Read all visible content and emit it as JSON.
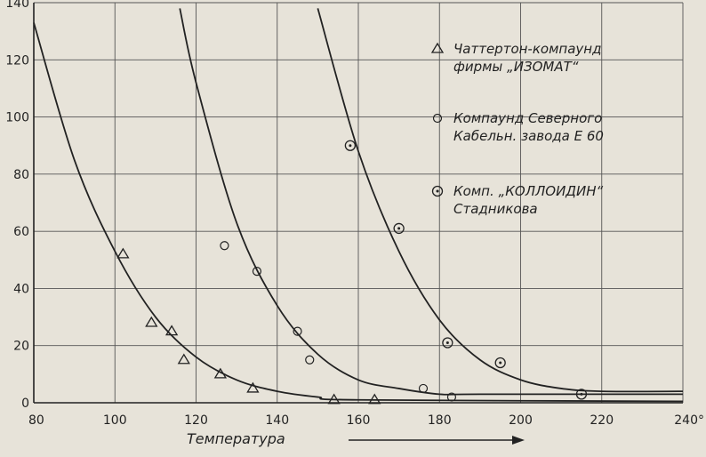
{
  "chart_data": {
    "type": "scatter",
    "title": "",
    "xlabel": "Температура",
    "ylabel": "",
    "xlim": [
      80,
      240
    ],
    "ylim": [
      0,
      140
    ],
    "x_ticks": [
      80,
      100,
      120,
      140,
      160,
      180,
      200,
      220,
      240
    ],
    "x_tick_labels": [
      "80",
      "100",
      "120",
      "140",
      "160",
      "180",
      "200",
      "220",
      "240°"
    ],
    "y_ticks": [
      0,
      20,
      40,
      60,
      80,
      100,
      120,
      140
    ],
    "y_tick_labels": [
      "0",
      "20",
      "40",
      "60",
      "80",
      "100",
      "120",
      "140"
    ],
    "grid": true,
    "legend_position": "top-right",
    "series": [
      {
        "name": "Чаттертон-компаунд фирмы „ИЗОМАТ“",
        "marker": "triangle",
        "points": [
          {
            "x": 102,
            "y": 52
          },
          {
            "x": 109,
            "y": 28
          },
          {
            "x": 114,
            "y": 25
          },
          {
            "x": 117,
            "y": 15
          },
          {
            "x": 126,
            "y": 10
          },
          {
            "x": 134,
            "y": 5
          },
          {
            "x": 154,
            "y": 1
          },
          {
            "x": 164,
            "y": 1
          }
        ],
        "curve": [
          {
            "x": 80,
            "y": 133
          },
          {
            "x": 90,
            "y": 85
          },
          {
            "x": 100,
            "y": 53
          },
          {
            "x": 110,
            "y": 30
          },
          {
            "x": 120,
            "y": 16
          },
          {
            "x": 130,
            "y": 8
          },
          {
            "x": 140,
            "y": 4
          },
          {
            "x": 150,
            "y": 2
          },
          {
            "x": 160,
            "y": 1
          },
          {
            "x": 240,
            "y": 0.5
          }
        ]
      },
      {
        "name": "Компаунд Северного Кабельн. завода Е 60",
        "marker": "circle",
        "points": [
          {
            "x": 127,
            "y": 55
          },
          {
            "x": 135,
            "y": 46
          },
          {
            "x": 145,
            "y": 25
          },
          {
            "x": 148,
            "y": 15
          },
          {
            "x": 176,
            "y": 5
          },
          {
            "x": 183,
            "y": 2
          }
        ],
        "curve": [
          {
            "x": 116,
            "y": 138
          },
          {
            "x": 120,
            "y": 112
          },
          {
            "x": 130,
            "y": 63
          },
          {
            "x": 140,
            "y": 34
          },
          {
            "x": 150,
            "y": 17
          },
          {
            "x": 160,
            "y": 8
          },
          {
            "x": 170,
            "y": 5
          },
          {
            "x": 180,
            "y": 3
          },
          {
            "x": 190,
            "y": 3
          },
          {
            "x": 240,
            "y": 3
          }
        ]
      },
      {
        "name": "Комп. „КОЛЛОИДИН“ Стадникова",
        "marker": "circle-dot",
        "points": [
          {
            "x": 158,
            "y": 90
          },
          {
            "x": 170,
            "y": 61
          },
          {
            "x": 182,
            "y": 21
          },
          {
            "x": 195,
            "y": 14
          },
          {
            "x": 215,
            "y": 3
          }
        ],
        "curve": [
          {
            "x": 150,
            "y": 138
          },
          {
            "x": 160,
            "y": 88
          },
          {
            "x": 170,
            "y": 53
          },
          {
            "x": 180,
            "y": 29
          },
          {
            "x": 190,
            "y": 15
          },
          {
            "x": 200,
            "y": 8
          },
          {
            "x": 210,
            "y": 5
          },
          {
            "x": 220,
            "y": 4
          },
          {
            "x": 240,
            "y": 4
          }
        ]
      }
    ]
  }
}
